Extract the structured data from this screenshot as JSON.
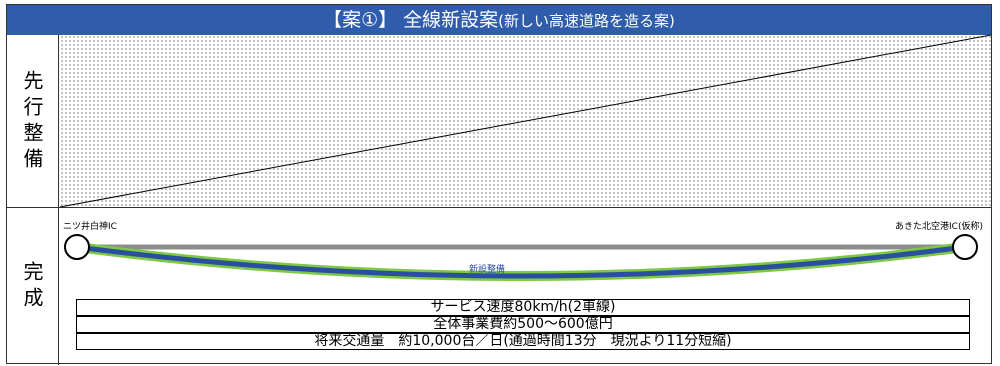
{
  "header": {
    "title_main": "【案①】 全線新設案",
    "title_sub": "(新しい高速道路を造る案)"
  },
  "rows": {
    "advance_label": "先行整備",
    "complete_label": "完成"
  },
  "diagram": {
    "ic_left": "ニツ井白神IC",
    "ic_right": "あきた北空港IC(仮称)",
    "route_label": "新設整備"
  },
  "info": {
    "line1": "サービス速度80km/h(2車線)",
    "line2": "全体事業費約500～600億円",
    "line3": "将来交通量　約10,000台／日(通過時間13分　現況より11分短縮)"
  },
  "colors": {
    "header_bg": "#2f5cab",
    "route_blue": "#2a4fa0",
    "route_green": "#7ec942",
    "existing_gray": "#8c8c8c"
  }
}
